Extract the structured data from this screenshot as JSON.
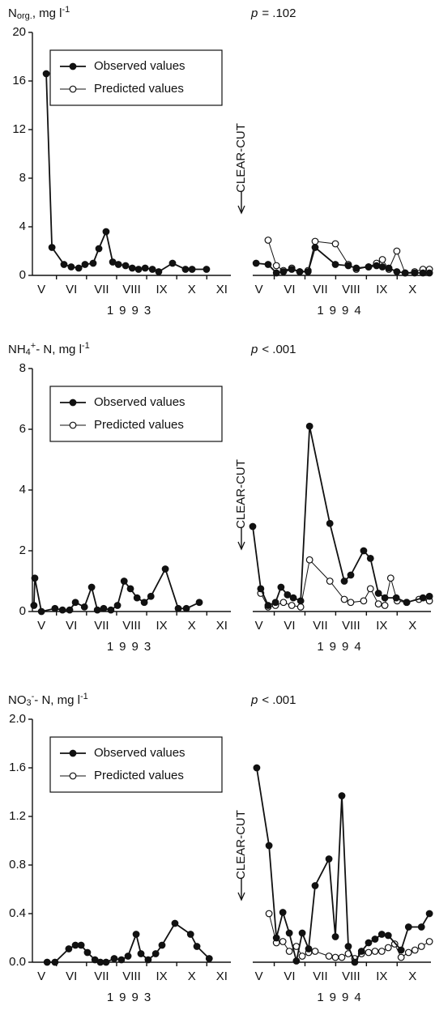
{
  "chart_data": [
    {
      "type": "line",
      "title": [
        "N",
        "org.",
        ",  mg  l",
        "-1"
      ],
      "title_style": [
        "normal",
        "sub",
        "normal",
        "super"
      ],
      "annotation": {
        "symbol": "p",
        "text": "= .102"
      },
      "ylim": [
        0,
        20
      ],
      "yticks": [
        0,
        4,
        8,
        12,
        16,
        20
      ],
      "legend": "upper left",
      "periods": [
        {
          "year": "1993",
          "show_y_axis": true,
          "xlim": [
            5.2,
            11.8
          ],
          "xticks": [
            {
              "value": 5.5,
              "label": "V"
            },
            {
              "value": 6.5,
              "label": "VI"
            },
            {
              "value": 7.5,
              "label": "VII"
            },
            {
              "value": 8.5,
              "label": "VIII"
            },
            {
              "value": 9.5,
              "label": "IX"
            },
            {
              "value": 10.5,
              "label": "X"
            },
            {
              "value": 11.5,
              "label": "XI"
            }
          ],
          "series": [
            {
              "name": "Observed values",
              "color": "#111111",
              "marker_fill": "#111111",
              "line_width": 1.8,
              "x": [
                5.66,
                5.85,
                6.25,
                6.49,
                6.74,
                6.95,
                7.22,
                7.41,
                7.65,
                7.87,
                8.06,
                8.3,
                8.52,
                8.73,
                8.95,
                9.19,
                9.4,
                9.86,
                10.29,
                10.51,
                10.99
              ],
              "values": [
                16.6,
                2.3,
                0.9,
                0.7,
                0.6,
                0.9,
                1.0,
                2.2,
                3.6,
                1.1,
                0.9,
                0.8,
                0.6,
                0.5,
                0.6,
                0.5,
                0.3,
                1.0,
                0.5,
                0.5,
                0.5
              ]
            }
          ]
        },
        {
          "year": "1994",
          "show_y_axis": false,
          "xlim": [
            5.3,
            11.1
          ],
          "event": "CLEAR-CUT",
          "xticks": [
            {
              "value": 5.5,
              "label": "V"
            },
            {
              "value": 6.5,
              "label": "VI"
            },
            {
              "value": 7.5,
              "label": "VII"
            },
            {
              "value": 8.5,
              "label": "VIII"
            },
            {
              "value": 9.5,
              "label": "IX"
            },
            {
              "value": 10.5,
              "label": "X"
            }
          ],
          "series": [
            {
              "name": "Observed values",
              "color": "#111111",
              "marker_fill": "#111111",
              "line_width": 1.8,
              "x": [
                5.41,
                5.8,
                6.07,
                6.3,
                6.57,
                6.83,
                7.1,
                7.33,
                7.99,
                8.41,
                8.67,
                9.07,
                9.33,
                9.52,
                9.73,
                9.99,
                10.26,
                10.57,
                10.84,
                11.05
              ],
              "values": [
                1.0,
                0.9,
                0.2,
                0.3,
                0.5,
                0.3,
                0.3,
                2.3,
                0.9,
                0.8,
                0.6,
                0.7,
                0.8,
                0.7,
                0.6,
                0.3,
                0.2,
                0.2,
                0.2,
                0.2
              ]
            },
            {
              "name": "Predicted values",
              "color": "#111111",
              "marker_fill": "#ffffff",
              "line_width": 1,
              "x": [
                5.8,
                6.07,
                6.3,
                6.57,
                6.83,
                7.1,
                7.33,
                7.99,
                8.41,
                8.67,
                9.07,
                9.33,
                9.52,
                9.73,
                9.99,
                10.26,
                10.57,
                10.84,
                11.05
              ],
              "values": [
                2.9,
                0.8,
                0.4,
                0.6,
                0.3,
                0.4,
                2.8,
                2.6,
                0.9,
                0.5,
                0.7,
                1.0,
                1.3,
                0.5,
                2.0,
                0.2,
                0.3,
                0.5,
                0.5
              ]
            }
          ]
        }
      ]
    },
    {
      "type": "line",
      "title": [
        "NH",
        "4",
        "+",
        "- N,  mg  l",
        "-1"
      ],
      "title_style": [
        "normal",
        "sub",
        "super",
        "normal",
        "super"
      ],
      "annotation": {
        "symbol": "p",
        "text": "< .001"
      },
      "ylim": [
        0,
        8
      ],
      "yticks": [
        0,
        2,
        4,
        6,
        8
      ],
      "legend": "upper left",
      "periods": [
        {
          "year": "1993",
          "show_y_axis": true,
          "xlim": [
            5.2,
            11.8
          ],
          "xticks": [
            {
              "value": 5.5,
              "label": "V"
            },
            {
              "value": 6.5,
              "label": "VI"
            },
            {
              "value": 7.5,
              "label": "VII"
            },
            {
              "value": 8.5,
              "label": "VIII"
            },
            {
              "value": 9.5,
              "label": "IX"
            },
            {
              "value": 10.5,
              "label": "X"
            },
            {
              "value": 11.5,
              "label": "XI"
            }
          ],
          "series": [
            {
              "name": "Observed values",
              "color": "#111111",
              "marker_fill": "#111111",
              "line_width": 1.8,
              "x": [
                5.25,
                5.28,
                5.5,
                5.95,
                6.2,
                6.44,
                6.63,
                6.93,
                7.17,
                7.36,
                7.57,
                7.81,
                8.03,
                8.25,
                8.46,
                8.68,
                8.92,
                9.14,
                9.62,
                10.05,
                10.32,
                10.75
              ],
              "values": [
                0.2,
                1.1,
                0.0,
                0.1,
                0.05,
                0.05,
                0.3,
                0.15,
                0.8,
                0.05,
                0.1,
                0.05,
                0.2,
                1.0,
                0.75,
                0.45,
                0.3,
                0.5,
                1.4,
                0.1,
                0.1,
                0.3
              ]
            }
          ]
        },
        {
          "year": "1994",
          "show_y_axis": false,
          "xlim": [
            5.3,
            11.1
          ],
          "event": "CLEAR-CUT",
          "xticks": [
            {
              "value": 5.5,
              "label": "V"
            },
            {
              "value": 6.5,
              "label": "VI"
            },
            {
              "value": 7.5,
              "label": "VII"
            },
            {
              "value": 8.5,
              "label": "VIII"
            },
            {
              "value": 9.5,
              "label": "IX"
            },
            {
              "value": 10.5,
              "label": "X"
            }
          ],
          "series": [
            {
              "name": "Observed values",
              "color": "#111111",
              "marker_fill": "#111111",
              "line_width": 1.8,
              "x": [
                5.3,
                5.56,
                5.8,
                6.04,
                6.22,
                6.43,
                6.62,
                6.86,
                7.15,
                7.81,
                8.28,
                8.49,
                8.91,
                9.13,
                9.39,
                9.6,
                9.97,
                10.31,
                10.84,
                11.05
              ],
              "values": [
                2.8,
                0.75,
                0.2,
                0.3,
                0.8,
                0.55,
                0.45,
                0.35,
                6.1,
                2.9,
                1.0,
                1.2,
                2.0,
                1.75,
                0.6,
                0.45,
                0.45,
                0.3,
                0.45,
                0.5
              ]
            },
            {
              "name": "Predicted values",
              "color": "#111111",
              "marker_fill": "#ffffff",
              "line_width": 1,
              "x": [
                5.56,
                5.8,
                6.04,
                6.3,
                6.57,
                6.86,
                7.15,
                7.81,
                8.28,
                8.49,
                8.91,
                9.13,
                9.39,
                9.6,
                9.79,
                10.0,
                10.31,
                10.71,
                11.05
              ],
              "values": [
                0.6,
                0.15,
                0.2,
                0.3,
                0.2,
                0.15,
                1.7,
                1.0,
                0.4,
                0.3,
                0.35,
                0.75,
                0.25,
                0.2,
                1.1,
                0.35,
                0.3,
                0.4,
                0.35
              ]
            }
          ]
        }
      ]
    },
    {
      "type": "line",
      "title": [
        "NO",
        "3",
        "-",
        "- N,  mg  l",
        "-1"
      ],
      "title_style": [
        "normal",
        "sub",
        "super",
        "normal",
        "super"
      ],
      "annotation": {
        "symbol": "p",
        "text": "< .001"
      },
      "ylim": [
        0,
        2
      ],
      "yticks": [
        {
          "value": 0,
          "label": "0.0"
        },
        0.4,
        0.8,
        1.2,
        1.6,
        {
          "value": 2,
          "label": "2.0"
        }
      ],
      "legend": "upper left",
      "periods": [
        {
          "year": "1993",
          "show_y_axis": true,
          "xlim": [
            5.2,
            11.8
          ],
          "xticks": [
            {
              "value": 5.5,
              "label": "V"
            },
            {
              "value": 6.5,
              "label": "VI"
            },
            {
              "value": 7.5,
              "label": "VII"
            },
            {
              "value": 8.5,
              "label": "VIII"
            },
            {
              "value": 9.5,
              "label": "IX"
            },
            {
              "value": 10.5,
              "label": "X"
            },
            {
              "value": 11.5,
              "label": "XI"
            }
          ],
          "series": [
            {
              "name": "Observed values",
              "color": "#111111",
              "marker_fill": "#111111",
              "line_width": 1.8,
              "x": [
                5.69,
                5.95,
                6.41,
                6.63,
                6.82,
                7.03,
                7.28,
                7.46,
                7.65,
                7.92,
                8.16,
                8.38,
                8.65,
                8.81,
                9.05,
                9.3,
                9.51,
                9.94,
                10.46,
                10.67,
                11.08
              ],
              "values": [
                0,
                0,
                0.11,
                0.14,
                0.14,
                0.08,
                0.02,
                0,
                0,
                0.03,
                0.02,
                0.05,
                0.23,
                0.07,
                0.02,
                0.07,
                0.14,
                0.32,
                0.23,
                0.13,
                0.03
              ]
            }
          ]
        },
        {
          "year": "1994",
          "show_y_axis": false,
          "xlim": [
            5.3,
            11.1
          ],
          "event": "CLEAR-CUT",
          "xticks": [
            {
              "value": 5.5,
              "label": "V"
            },
            {
              "value": 6.5,
              "label": "VI"
            },
            {
              "value": 7.5,
              "label": "VII"
            },
            {
              "value": 8.5,
              "label": "VIII"
            },
            {
              "value": 9.5,
              "label": "IX"
            },
            {
              "value": 10.5,
              "label": "X"
            }
          ],
          "series": [
            {
              "name": "Observed values",
              "color": "#111111",
              "marker_fill": "#111111",
              "line_width": 1.8,
              "x": [
                5.43,
                5.83,
                6.07,
                6.28,
                6.49,
                6.72,
                6.91,
                7.12,
                7.33,
                7.78,
                7.99,
                8.2,
                8.41,
                8.62,
                8.84,
                9.07,
                9.28,
                9.5,
                9.71,
                10.13,
                10.37,
                10.79,
                11.05
              ],
              "values": [
                1.6,
                0.96,
                0.2,
                0.41,
                0.24,
                0.01,
                0.24,
                0.11,
                0.63,
                0.85,
                0.21,
                1.37,
                0.13,
                0,
                0.09,
                0.16,
                0.19,
                0.23,
                0.22,
                0.1,
                0.29,
                0.29,
                0.4
              ]
            },
            {
              "name": "Predicted values",
              "color": "#111111",
              "marker_fill": "#ffffff",
              "line_width": 1,
              "x": [
                5.83,
                6.07,
                6.28,
                6.49,
                6.72,
                6.91,
                7.12,
                7.33,
                7.78,
                7.99,
                8.2,
                8.41,
                8.62,
                8.84,
                9.07,
                9.28,
                9.5,
                9.71,
                9.92,
                10.13,
                10.37,
                10.58,
                10.79,
                11.05
              ],
              "values": [
                0.4,
                0.16,
                0.17,
                0.09,
                0.13,
                0.05,
                0.08,
                0.09,
                0.05,
                0.04,
                0.04,
                0.07,
                0.03,
                0.07,
                0.08,
                0.09,
                0.09,
                0.12,
                0.15,
                0.04,
                0.08,
                0.1,
                0.13,
                0.17
              ]
            }
          ]
        }
      ]
    }
  ]
}
